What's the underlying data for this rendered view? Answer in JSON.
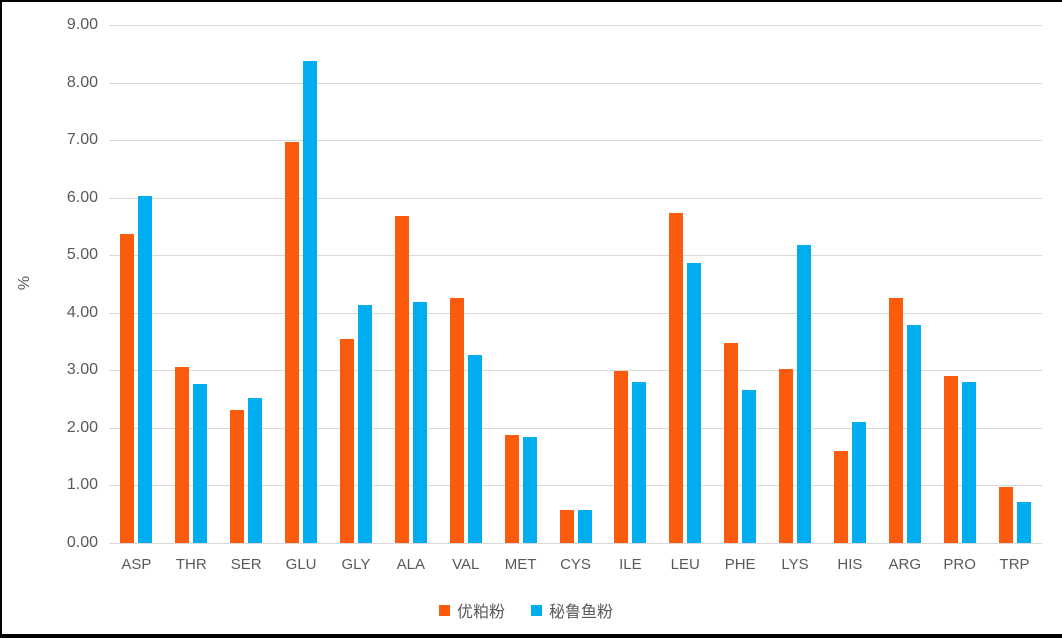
{
  "chart_data": {
    "type": "bar",
    "title": "",
    "xlabel": "",
    "ylabel": "%",
    "ylim": [
      0,
      9
    ],
    "ytick_step": 1,
    "ytick_decimals": 2,
    "grid": true,
    "legend_position": "bottom",
    "categories": [
      "ASP",
      "THR",
      "SER",
      "GLU",
      "GLY",
      "ALA",
      "VAL",
      "MET",
      "CYS",
      "ILE",
      "LEU",
      "PHE",
      "LYS",
      "HIS",
      "ARG",
      "PRO",
      "TRP"
    ],
    "series": [
      {
        "name": "优粕粉",
        "color": "#FA5B0D",
        "values": [
          5.37,
          3.06,
          2.31,
          6.97,
          3.54,
          5.68,
          4.26,
          1.87,
          0.57,
          2.99,
          5.74,
          3.47,
          3.02,
          1.59,
          4.26,
          2.91,
          0.97
        ]
      },
      {
        "name": "秘鲁鱼粉",
        "color": "#00AEEF",
        "values": [
          6.03,
          2.76,
          2.52,
          8.37,
          4.13,
          4.18,
          3.27,
          1.85,
          0.57,
          2.8,
          4.86,
          2.66,
          5.17,
          2.11,
          3.78,
          2.79,
          0.72
        ]
      }
    ],
    "colors": {
      "gridline": "#d9d9d9",
      "axis_text": "#595959",
      "background": "#ffffff",
      "border": "#000000"
    }
  }
}
